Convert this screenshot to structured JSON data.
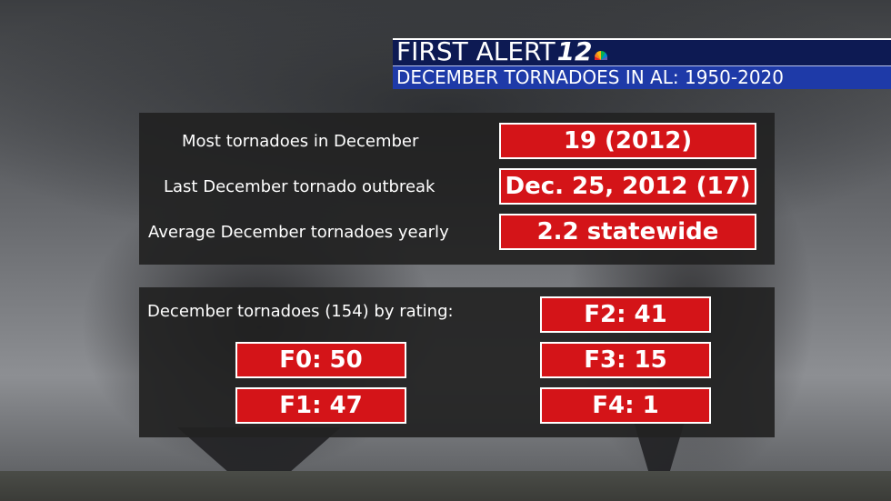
{
  "header": {
    "brand_word": "FIRST ALERT",
    "brand_number": "12",
    "subtitle": "DECEMBER TORNADOES IN AL: 1950-2020",
    "colors": {
      "top_bar": "#0d1a53",
      "sub_bar": "#1e3aa8"
    }
  },
  "stats": [
    {
      "label": "Most tornadoes in December",
      "value": "19 (2012)"
    },
    {
      "label": "Last December tornado outbreak",
      "value": "Dec. 25, 2012 (17)"
    },
    {
      "label": "Average December tornadoes yearly",
      "value": "2.2 statewide"
    }
  ],
  "ratings": {
    "heading": "December tornadoes (154) by rating:",
    "items": [
      "F0: 50",
      "F1: 47",
      "F2: 41",
      "F3: 15",
      "F4: 1"
    ]
  },
  "colors": {
    "value_box": "#d41418",
    "panel": "#222222"
  }
}
